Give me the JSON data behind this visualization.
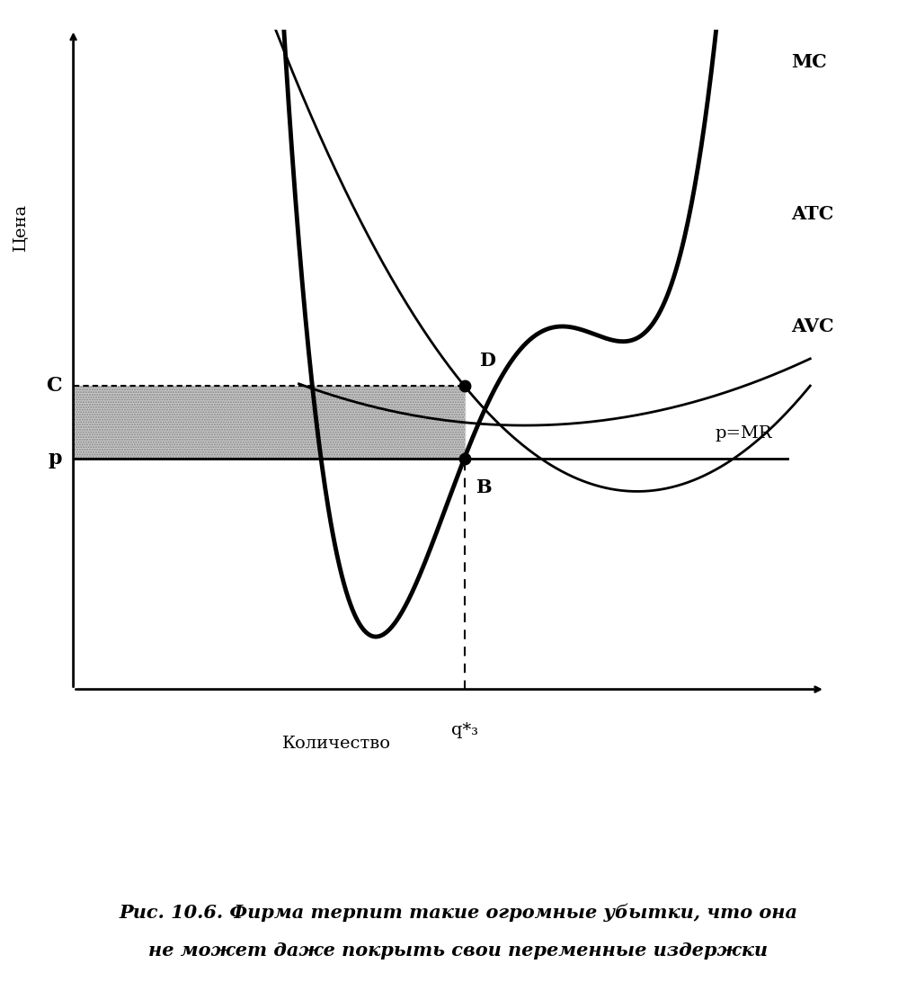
{
  "caption_line1": "Рис. 10.6. Фирма терпит такие огромные убытки, что она",
  "caption_line2": "не может даже покрыть свои переменные издержки",
  "ylabel": "Цена",
  "xlabel": "Количество",
  "q_star": 5.2,
  "p_level": 3.5,
  "c_level": 4.6,
  "label_MC": "MC",
  "label_ATC": "ATC",
  "label_AVC": "AVC",
  "label_MR": "p=MR",
  "label_p": "p",
  "label_c": "C",
  "label_D": "D",
  "label_B": "B",
  "label_q": "q*₃",
  "background_color": "#ffffff",
  "curve_color": "#000000",
  "shade_color": "#b8b8b8",
  "xlim": [
    0,
    10
  ],
  "ylim": [
    -2.5,
    10
  ]
}
